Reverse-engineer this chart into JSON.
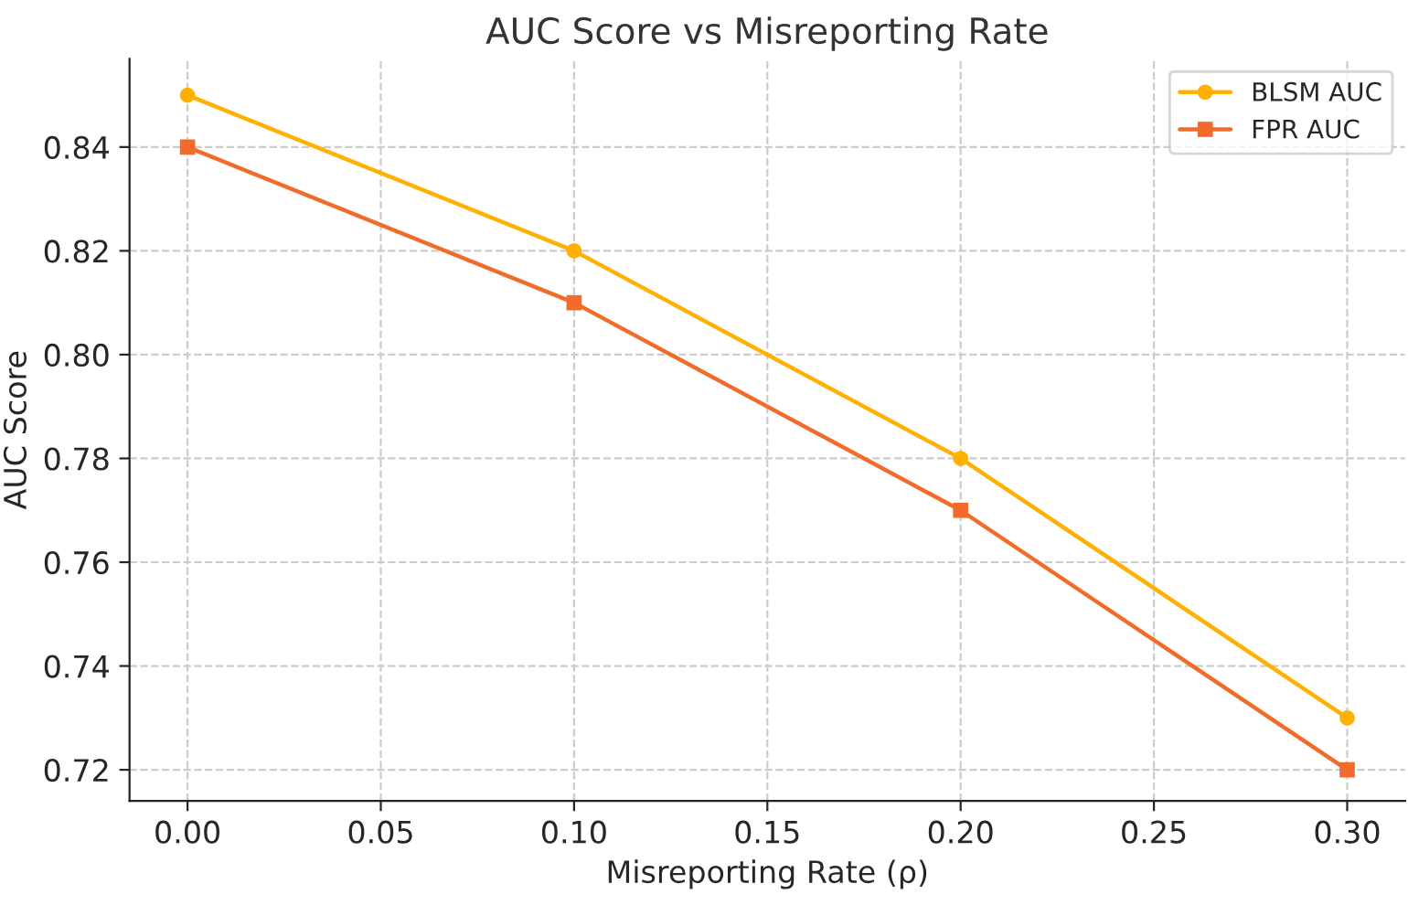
{
  "chart_data": {
    "type": "line",
    "title": "AUC Score vs Misreporting Rate",
    "xlabel": "Misreporting Rate (ρ)",
    "ylabel": "AUC Score",
    "x": [
      0.0,
      0.1,
      0.2,
      0.3
    ],
    "series": [
      {
        "name": "BLSM AUC",
        "color": "#ffb000",
        "values": [
          0.85,
          0.82,
          0.78,
          0.73
        ],
        "marker": "circle"
      },
      {
        "name": "FPR AUC",
        "color": "#f26b2a",
        "values": [
          0.84,
          0.81,
          0.77,
          0.72
        ],
        "marker": "square"
      }
    ],
    "xlim": [
      -0.015,
      0.315
    ],
    "ylim": [
      0.714,
      0.857
    ],
    "xticks": [
      {
        "value": 0.0,
        "label": "0.00"
      },
      {
        "value": 0.05,
        "label": "0.05"
      },
      {
        "value": 0.1,
        "label": "0.10"
      },
      {
        "value": 0.15,
        "label": "0.15"
      },
      {
        "value": 0.2,
        "label": "0.20"
      },
      {
        "value": 0.25,
        "label": "0.25"
      },
      {
        "value": 0.3,
        "label": "0.30"
      }
    ],
    "yticks": [
      {
        "value": 0.72,
        "label": "0.72"
      },
      {
        "value": 0.74,
        "label": "0.74"
      },
      {
        "value": 0.76,
        "label": "0.76"
      },
      {
        "value": 0.78,
        "label": "0.78"
      },
      {
        "value": 0.8,
        "label": "0.80"
      },
      {
        "value": 0.82,
        "label": "0.82"
      },
      {
        "value": 0.84,
        "label": "0.84"
      }
    ],
    "grid": true,
    "legend": "top right",
    "line_style": "solid"
  }
}
